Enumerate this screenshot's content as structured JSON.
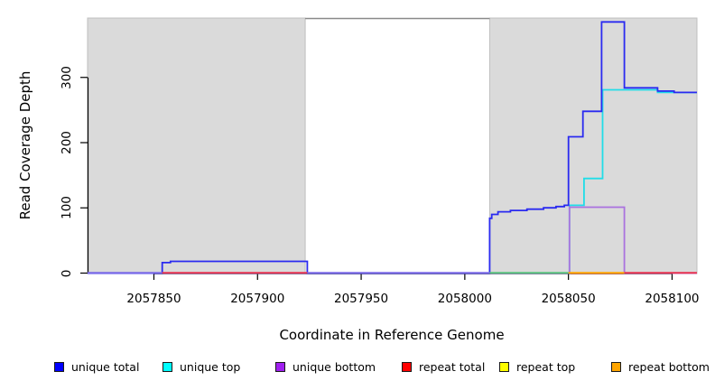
{
  "chart_data": {
    "type": "line",
    "title": "",
    "xlabel": "Coordinate in Reference Genome",
    "ylabel": "Read Coverage Depth",
    "x_ticks": [
      2057850,
      2057900,
      2057950,
      2058000,
      2058050,
      2058100
    ],
    "y_ticks": [
      0,
      100,
      200,
      300
    ],
    "xlim": [
      2057818,
      2058112
    ],
    "ylim": [
      0,
      391
    ],
    "grid": false,
    "legend_position": "bottom",
    "plot_style": "step",
    "shaded_regions": [
      {
        "x0": 2057818,
        "x1": 2057923,
        "color": "#dadada",
        "border": "#bfbfbf"
      },
      {
        "x0": 2058012,
        "x1": 2058112,
        "color": "#dadada",
        "border": "#bfbfbf"
      }
    ],
    "top_border_span": {
      "x0": 2057923,
      "x1": 2058012,
      "color": "#8a8a8a"
    },
    "series": [
      {
        "name": "repeat top",
        "color": "#f2f20a",
        "step_points": [
          [
            2057818,
            0
          ]
        ]
      },
      {
        "name": "repeat bottom",
        "color": "#ffa500",
        "step_points": [
          [
            2057818,
            0
          ]
        ]
      },
      {
        "name": "repeat total",
        "color": "#e8314f",
        "step_points": [
          [
            2057818,
            0
          ]
        ]
      },
      {
        "name": "unique top",
        "color": "#20dde8",
        "step_points": [
          [
            2057818,
            0
          ],
          [
            2058050.5,
            104
          ],
          [
            2058057.5,
            145
          ],
          [
            2058066.5,
            281
          ],
          [
            2058093,
            277
          ]
        ]
      },
      {
        "name": "unique bottom",
        "color": "#aa72de",
        "step_points": [
          [
            2057818,
            0
          ],
          [
            2058050.5,
            101
          ],
          [
            2058077,
            0
          ]
        ]
      },
      {
        "name": "unique total",
        "color": "#2a2af0",
        "step_points": [
          [
            2057818,
            0
          ],
          [
            2057854,
            16
          ],
          [
            2057858,
            18
          ],
          [
            2057924,
            0
          ],
          [
            2058012,
            84
          ],
          [
            2058013,
            90
          ],
          [
            2058016,
            94
          ],
          [
            2058022,
            96
          ],
          [
            2058030,
            98
          ],
          [
            2058038,
            100
          ],
          [
            2058044,
            102
          ],
          [
            2058048,
            104
          ],
          [
            2058050,
            209
          ],
          [
            2058057,
            248
          ],
          [
            2058066,
            385
          ],
          [
            2058077,
            284
          ],
          [
            2058093,
            279
          ],
          [
            2058101,
            277
          ]
        ]
      }
    ],
    "baseline_segments": [
      {
        "x0": 2057818,
        "x1": 2057854,
        "color": "#7b6ae8"
      },
      {
        "x0": 2057854,
        "x1": 2057924,
        "color": "#e8314f"
      },
      {
        "x0": 2057924,
        "x1": 2058012,
        "color": "#7b6ae8"
      },
      {
        "x0": 2058012,
        "x1": 2058050,
        "color": "#57c17d"
      },
      {
        "x0": 2058050,
        "x1": 2058077,
        "color": "#ffa500"
      },
      {
        "x0": 2058077,
        "x1": 2058112,
        "color": "#e8314f"
      }
    ]
  },
  "legend": {
    "items": [
      {
        "label": "unique total",
        "color": "#0000ff"
      },
      {
        "label": "unique top",
        "color": "#00ffff"
      },
      {
        "label": "unique bottom",
        "color": "#a020f0"
      },
      {
        "label": "repeat total",
        "color": "#ff0000"
      },
      {
        "label": "repeat top",
        "color": "#ffff00"
      },
      {
        "label": "repeat bottom",
        "color": "#ffa500"
      }
    ]
  }
}
